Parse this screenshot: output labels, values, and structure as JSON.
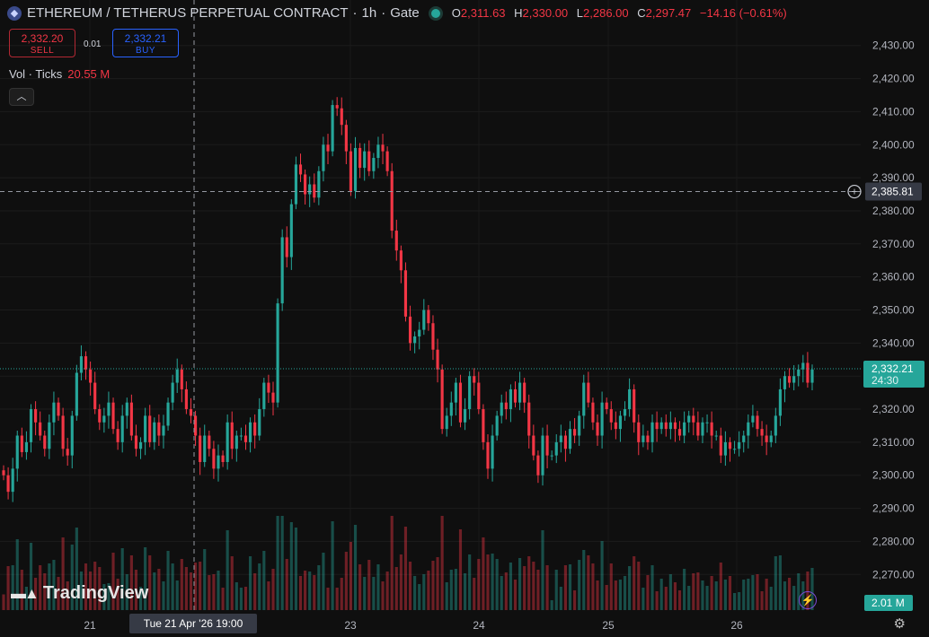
{
  "header": {
    "title": "ETHEREUM / TETHERUS PERPETUAL CONTRACT",
    "interval": "1h",
    "exchange": "Gate",
    "ohlc": {
      "o_label": "O",
      "o": "2,311.63",
      "h_label": "H",
      "h": "2,330.00",
      "l_label": "L",
      "l": "2,286.00",
      "c_label": "C",
      "c": "2,297.47",
      "change": "−14.16 (−0.61%)"
    }
  },
  "trade": {
    "sell_price": "2,332.20",
    "sell_label": "SELL",
    "spread": "0.01",
    "buy_price": "2,332.21",
    "buy_label": "BUY"
  },
  "volume_legend": {
    "label": "Vol · Ticks",
    "value": "20.55 M"
  },
  "branding": {
    "logo_text": "TradingView"
  },
  "colors": {
    "up": "#26a69a",
    "down": "#f23645",
    "background": "#0f0f0f"
  },
  "icons": [
    "ethereum-icon",
    "live-dot-icon",
    "collapse-chevron-icon",
    "crosshair-plus-icon",
    "lightning-icon",
    "gear-icon",
    "tradingview-logo-icon"
  ],
  "chart_data": {
    "type": "candlestick",
    "y_ticks": [
      2270,
      2280,
      2290,
      2300,
      2310,
      2320,
      2330,
      2340,
      2350,
      2360,
      2370,
      2380,
      2390,
      2400,
      2410,
      2420,
      2430
    ],
    "ylim": [
      2266,
      2434
    ],
    "x_ticks": [
      "21",
      "23",
      "24",
      "25",
      "26"
    ],
    "crosshair": {
      "price_label": "2,385.81",
      "time_label": "Tue 21 Apr '26   19:00",
      "price": 2385.81
    },
    "last_price": {
      "label": "2,332.21",
      "countdown": "24:30",
      "price": 2332.21
    },
    "volume_last_label": "2.01 M",
    "closes": [
      2300,
      2295,
      2302,
      2312,
      2307,
      2310,
      2320,
      2316,
      2312,
      2308,
      2316,
      2322,
      2318,
      2308,
      2306,
      2318,
      2331,
      2336,
      2332,
      2328,
      2320,
      2316,
      2318,
      2322,
      2314,
      2310,
      2318,
      2322,
      2312,
      2308,
      2310,
      2318,
      2310,
      2316,
      2312,
      2315,
      2322,
      2328,
      2332,
      2326,
      2320,
      2318,
      2312,
      2304,
      2312,
      2308,
      2302,
      2306,
      2304,
      2316,
      2308,
      2312,
      2312,
      2310,
      2316,
      2312,
      2320,
      2328,
      2325,
      2322,
      2352,
      2372,
      2366,
      2382,
      2394,
      2391,
      2385,
      2388,
      2384,
      2392,
      2400,
      2398,
      2412,
      2411,
      2406,
      2398,
      2386,
      2399,
      2393,
      2398,
      2392,
      2396,
      2400,
      2398,
      2392,
      2374,
      2368,
      2362,
      2348,
      2340,
      2342,
      2344,
      2350,
      2346,
      2338,
      2332,
      2314,
      2318,
      2322,
      2328,
      2316,
      2320,
      2330,
      2328,
      2320,
      2310,
      2302,
      2312,
      2318,
      2322,
      2320,
      2326,
      2322,
      2328,
      2322,
      2312,
      2306,
      2300,
      2312,
      2306,
      2306,
      2310,
      2312,
      2308,
      2314,
      2312,
      2318,
      2328,
      2322,
      2316,
      2312,
      2322,
      2320,
      2316,
      2314,
      2318,
      2320,
      2326,
      2316,
      2310,
      2312,
      2310,
      2316,
      2314,
      2316,
      2314,
      2316,
      2314,
      2312,
      2316,
      2318,
      2316,
      2312,
      2316,
      2316,
      2312,
      2312,
      2306,
      2310,
      2308,
      2308,
      2310,
      2312,
      2316,
      2318,
      2314,
      2312,
      2310,
      2312,
      2318,
      2326,
      2330,
      2328,
      2330,
      2332,
      2334,
      2328,
      2332
    ]
  }
}
